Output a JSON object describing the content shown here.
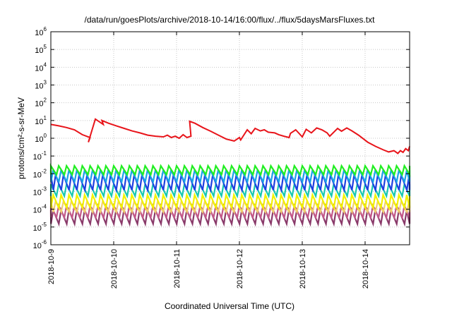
{
  "chart_data": {
    "type": "line",
    "title": "/data/run/goesPlots/archive/2018-10-14/16:00/flux/../flux/5daysMarsFluxes.txt",
    "xlabel": "Coordinated Universal Time (UTC)",
    "ylabel": "protons/cm²-s-sr-MeV",
    "y_scale": "log",
    "ylim": [
      1e-06,
      1000000.0
    ],
    "xlim": [
      "2018-10-09T00:00",
      "2018-10-14T17:00"
    ],
    "x_ticks": [
      "2018-10-9",
      "2018-10-10",
      "2018-10-11",
      "2018-10-12",
      "2018-10-13",
      "2018-10-14"
    ],
    "y_ticks": [
      {
        "value": 1e-06,
        "base": "10",
        "exp": "-6"
      },
      {
        "value": 1e-05,
        "base": "10",
        "exp": "-5"
      },
      {
        "value": 0.0001,
        "base": "10",
        "exp": "-4"
      },
      {
        "value": 0.001,
        "base": "10",
        "exp": "-3"
      },
      {
        "value": 0.01,
        "base": "10",
        "exp": "-2"
      },
      {
        "value": 0.1,
        "base": "10",
        "exp": "-1"
      },
      {
        "value": 1,
        "base": "10",
        "exp": "0"
      },
      {
        "value": 10,
        "base": "10",
        "exp": "1"
      },
      {
        "value": 100,
        "base": "10",
        "exp": "2"
      },
      {
        "value": 1000,
        "base": "10",
        "exp": "3"
      },
      {
        "value": 10000,
        "base": "10",
        "exp": "4"
      },
      {
        "value": 100000,
        "base": "10",
        "exp": "5"
      },
      {
        "value": 1000000,
        "base": "10",
        "exp": "6"
      }
    ],
    "grid": true,
    "legend": "none",
    "series": [
      {
        "color": "#e8141a",
        "x": [
          "2018-10-09T00:00",
          "2018-10-09T03:00",
          "2018-10-09T06:00",
          "2018-10-09T09:00",
          "2018-10-09T12:00",
          "2018-10-09T15:00",
          "2018-10-09T14:20",
          "2018-10-09T17:00",
          "2018-10-09T20:00",
          "2018-10-09T19:30",
          "2018-10-09T22:00",
          "2018-10-10T01:00",
          "2018-10-10T04:00",
          "2018-10-10T07:00",
          "2018-10-10T10:00",
          "2018-10-10T13:00",
          "2018-10-10T16:00",
          "2018-10-10T19:00",
          "2018-10-10T20:30",
          "2018-10-10T22:00",
          "2018-10-10T23:30",
          "2018-10-11T01:00",
          "2018-10-11T02:30",
          "2018-10-11T04:00",
          "2018-10-11T05:30",
          "2018-10-11T05:00",
          "2018-10-11T07:00",
          "2018-10-11T10:00",
          "2018-10-11T13:00",
          "2018-10-11T16:00",
          "2018-10-11T19:00",
          "2018-10-11T22:00",
          "2018-10-12T00:00",
          "2018-10-12T00:30",
          "2018-10-12T03:00",
          "2018-10-12T04:30",
          "2018-10-12T06:00",
          "2018-10-12T08:00",
          "2018-10-12T09:30",
          "2018-10-12T11:00",
          "2018-10-12T13:30",
          "2018-10-12T15:00",
          "2018-10-12T17:00",
          "2018-10-12T19:00",
          "2018-10-12T19:30",
          "2018-10-12T21:30",
          "2018-10-13T00:00",
          "2018-10-13T01:30",
          "2018-10-13T03:30",
          "2018-10-13T05:30",
          "2018-10-13T07:30",
          "2018-10-13T09:30",
          "2018-10-13T10:30",
          "2018-10-13T13:30",
          "2018-10-13T15:00",
          "2018-10-13T17:00",
          "2018-10-13T19:00",
          "2018-10-13T21:30",
          "2018-10-14T01:00",
          "2018-10-14T04:00",
          "2018-10-14T07:00",
          "2018-10-14T09:00",
          "2018-10-14T11:00",
          "2018-10-14T12:30",
          "2018-10-14T13:30",
          "2018-10-14T14:30",
          "2018-10-14T15:30",
          "2018-10-14T16:30",
          "2018-10-14T17:00"
        ],
        "values": [
          6,
          5,
          4,
          3,
          1.6,
          1.1,
          0.6,
          12,
          6,
          10,
          7,
          5,
          3.6,
          2.6,
          2.0,
          1.5,
          1.3,
          1.2,
          1.5,
          1.1,
          1.3,
          1.0,
          1.6,
          1.1,
          1.3,
          9,
          7,
          4,
          2.5,
          1.5,
          0.9,
          0.7,
          1.1,
          0.8,
          3,
          1.8,
          3.6,
          2.6,
          3.0,
          2.2,
          2.0,
          1.6,
          1.3,
          1.1,
          1.9,
          3.0,
          1.2,
          3.2,
          2.0,
          3.8,
          3.0,
          2.0,
          1.3,
          3.6,
          2.5,
          3.8,
          2.6,
          1.5,
          0.6,
          0.35,
          0.22,
          0.17,
          0.2,
          0.14,
          0.2,
          0.16,
          0.26,
          0.2,
          0.35
        ]
      },
      {
        "color": "#22ee22",
        "low": 0.009,
        "high": 0.028
      },
      {
        "color": "#1aa3e8",
        "low": 0.0035,
        "high": 0.016
      },
      {
        "color": "#1f3fe0",
        "low": 0.0012,
        "high": 0.0085
      },
      {
        "color": "#18c8b0",
        "low": 0.00055,
        "high": 0.0026
      },
      {
        "color": "#f2f200",
        "low": 0.00012,
        "high": 0.00065
      },
      {
        "color": "#f0d070",
        "low": 7e-05,
        "high": 0.00028
      },
      {
        "color": "#c45a8a",
        "low": 3.5e-05,
        "high": 0.00016
      },
      {
        "color": "#8a3a6a",
        "low": 1.5e-05,
        "high": 9e-05
      }
    ]
  }
}
